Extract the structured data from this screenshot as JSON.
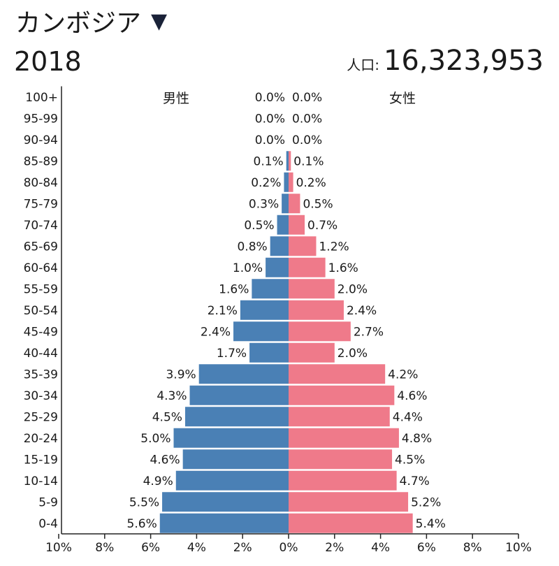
{
  "header": {
    "country": "カンボジア",
    "country_arrow": "▼",
    "year": "2018",
    "population_label": "人口:",
    "population_value": "16,323,953"
  },
  "colors": {
    "male": "#4a80b5",
    "female": "#ef7a8a",
    "axis": "#222222"
  },
  "chart_data": {
    "type": "bar",
    "orientation": "horizontal-pyramid",
    "title": "カンボジア 2018",
    "male_label": "男性",
    "female_label": "女性",
    "categories": [
      "100+",
      "95-99",
      "90-94",
      "85-89",
      "80-84",
      "75-79",
      "70-74",
      "65-69",
      "60-64",
      "55-59",
      "50-54",
      "45-49",
      "40-44",
      "35-39",
      "30-34",
      "25-29",
      "20-24",
      "15-19",
      "10-14",
      "5-9",
      "0-4"
    ],
    "series": [
      {
        "name": "男性",
        "values": [
          0.0,
          0.0,
          0.0,
          0.1,
          0.2,
          0.3,
          0.5,
          0.8,
          1.0,
          1.6,
          2.1,
          2.4,
          1.7,
          3.9,
          4.3,
          4.5,
          5.0,
          4.6,
          4.9,
          5.5,
          5.6
        ]
      },
      {
        "name": "女性",
        "values": [
          0.0,
          0.0,
          0.0,
          0.1,
          0.2,
          0.5,
          0.7,
          1.2,
          1.6,
          2.0,
          2.4,
          2.7,
          2.0,
          4.2,
          4.6,
          4.4,
          4.8,
          4.5,
          4.7,
          5.2,
          5.4
        ]
      }
    ],
    "value_labels": {
      "male": [
        "0.0%",
        "0.0%",
        "0.0%",
        "0.1%",
        "0.2%",
        "0.3%",
        "0.5%",
        "0.8%",
        "1.0%",
        "1.6%",
        "2.1%",
        "2.4%",
        "1.7%",
        "3.9%",
        "4.3%",
        "4.5%",
        "5.0%",
        "4.6%",
        "4.9%",
        "5.5%",
        "5.6%"
      ],
      "female": [
        "0.0%",
        "0.0%",
        "0.0%",
        "0.1%",
        "0.2%",
        "0.5%",
        "0.7%",
        "1.2%",
        "1.6%",
        "2.0%",
        "2.4%",
        "2.7%",
        "2.0%",
        "4.2%",
        "4.6%",
        "4.4%",
        "4.8%",
        "4.5%",
        "4.7%",
        "5.2%",
        "5.4%"
      ]
    },
    "xlim": [
      -10,
      10
    ],
    "xticks": [
      "10%",
      "8%",
      "6%",
      "4%",
      "2%",
      "0%",
      "2%",
      "4%",
      "6%",
      "8%",
      "10%"
    ],
    "xtick_values": [
      -10,
      -8,
      -6,
      -4,
      -2,
      0,
      2,
      4,
      6,
      8,
      10
    ]
  }
}
